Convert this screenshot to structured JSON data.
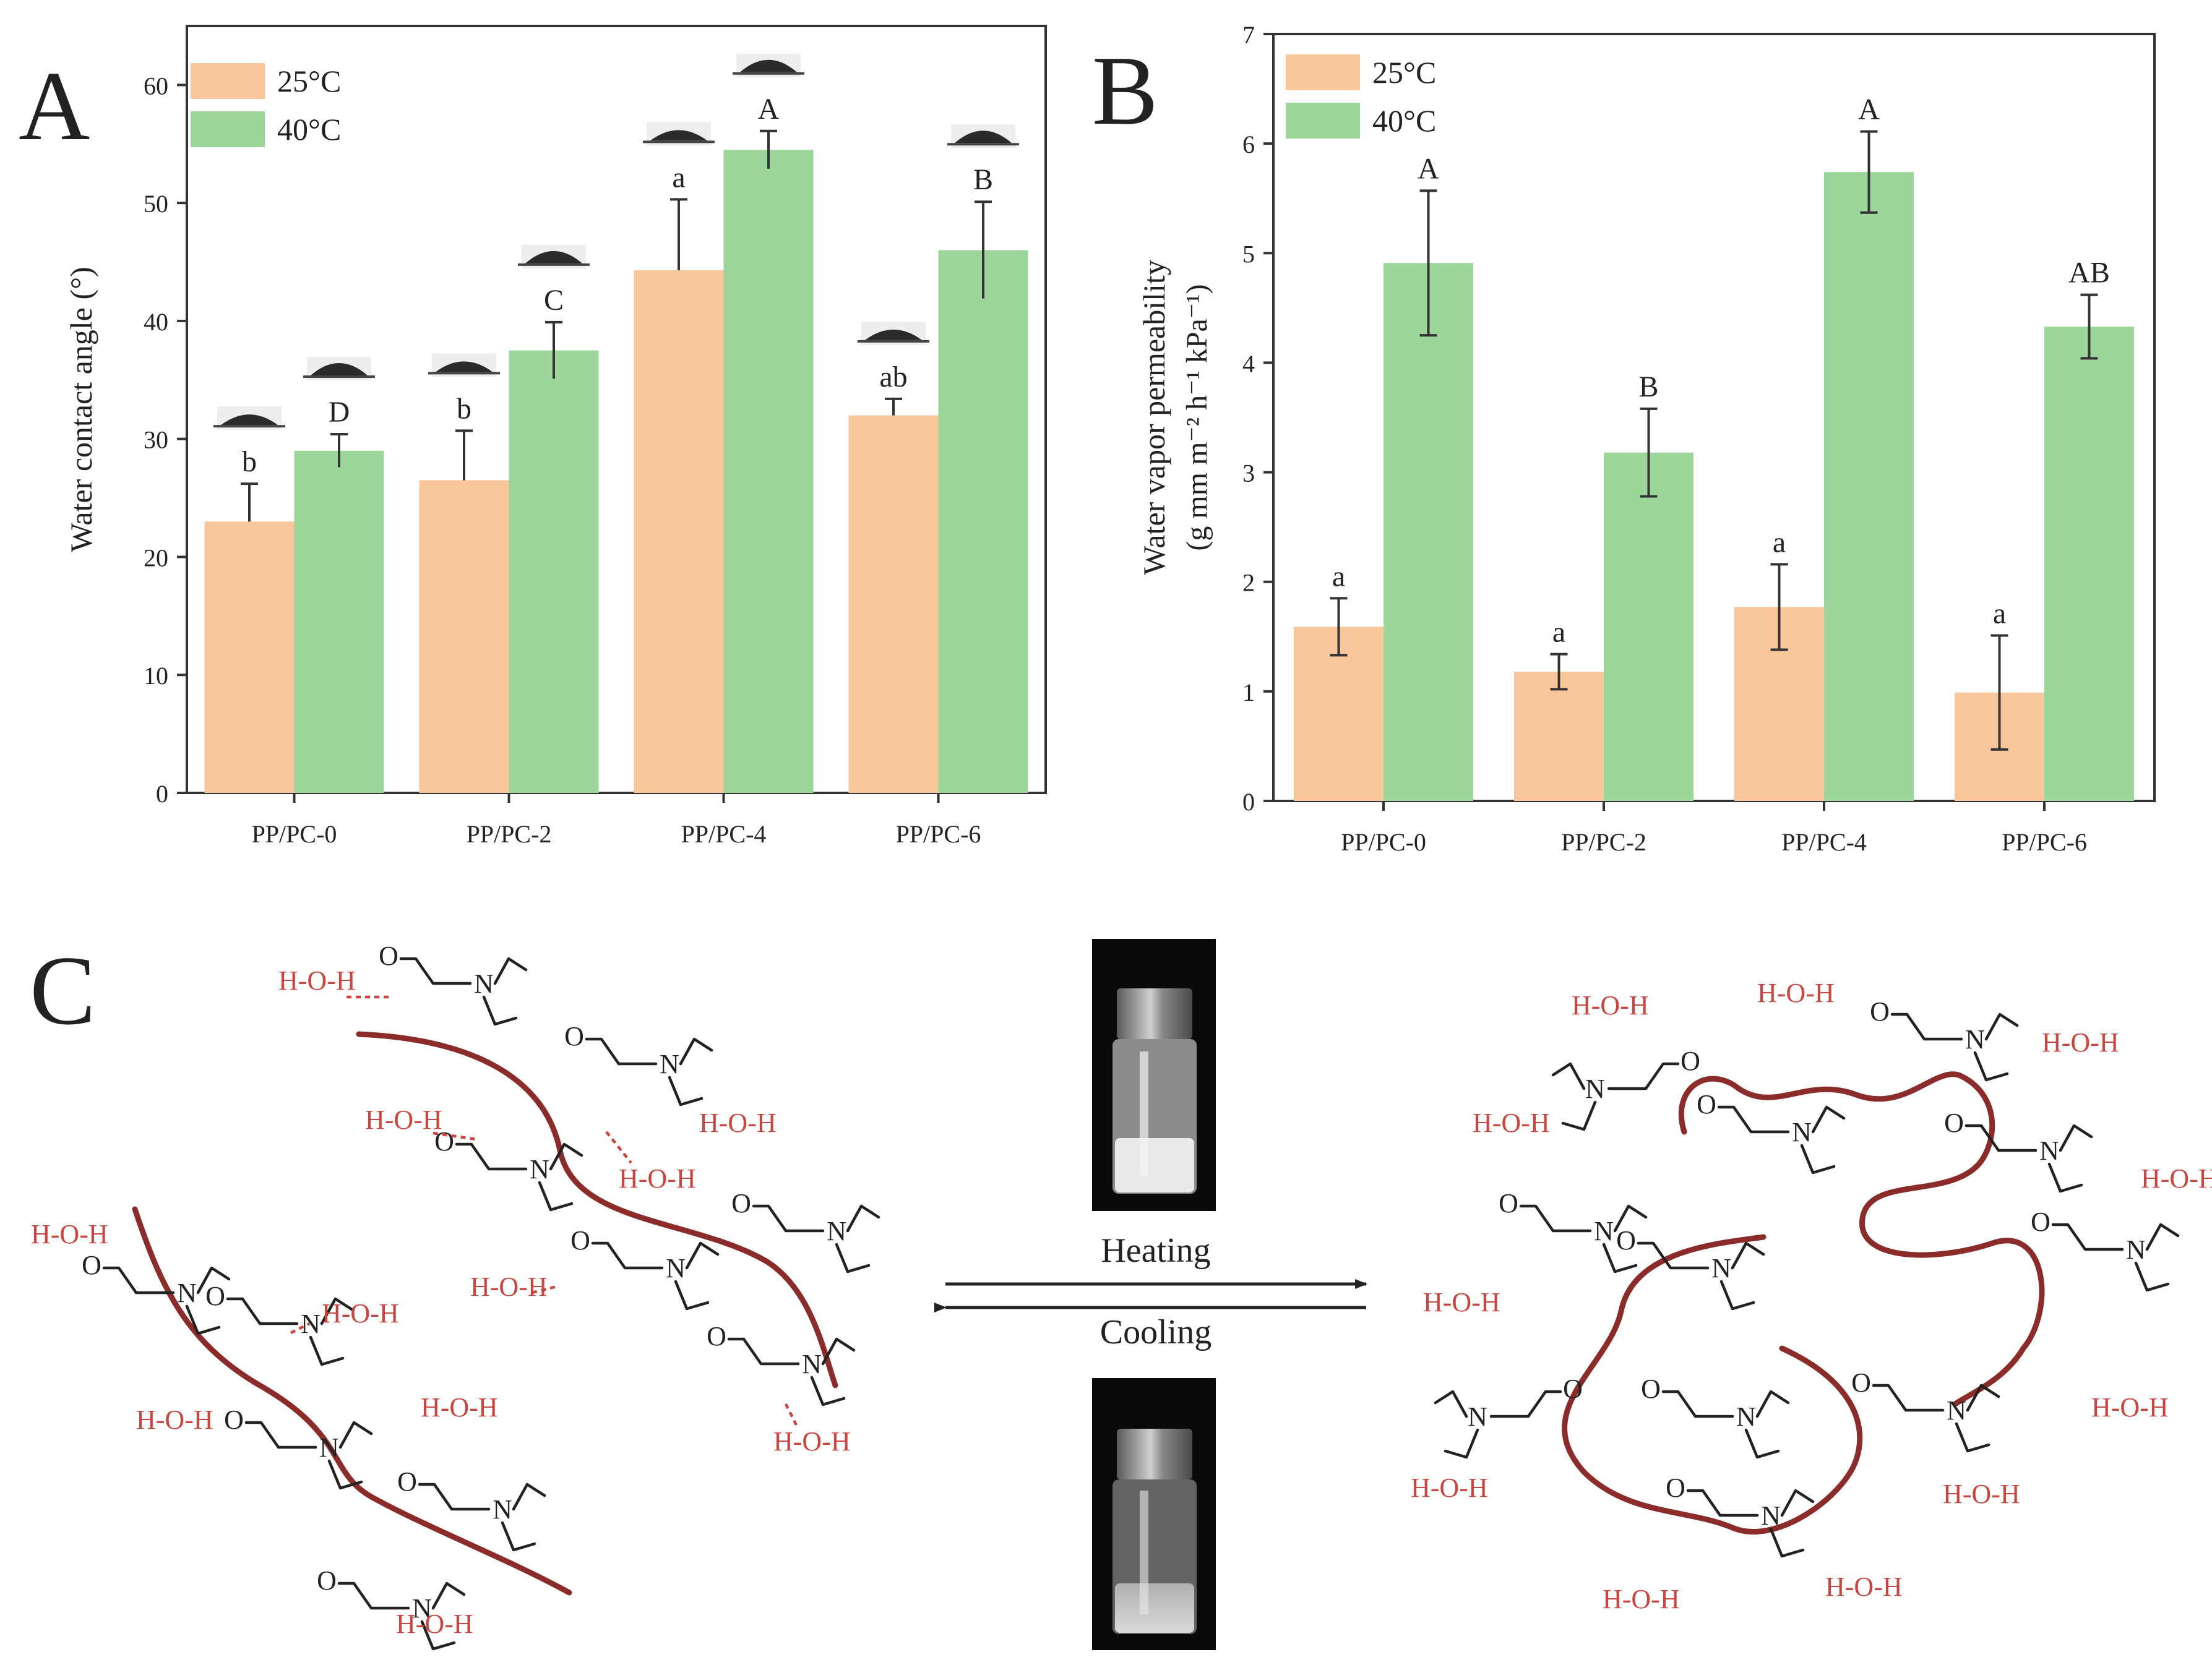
{
  "chart_data": [
    {
      "panel": "A",
      "type": "bar",
      "title": "",
      "xlabel": "",
      "ylabel": "Water contact angle (°)",
      "categories": [
        "PP/PC-0",
        "PP/PC-2",
        "PP/PC-4",
        "PP/PC-6"
      ],
      "ylim": [
        0,
        65
      ],
      "yticks": [
        0,
        10,
        20,
        30,
        40,
        50,
        60
      ],
      "grid": false,
      "legend_position": "top-left",
      "series": [
        {
          "name": "25°C",
          "color": "#f9c59a",
          "values": [
            23.0,
            26.5,
            44.3,
            32.0
          ],
          "errors": [
            3.2,
            4.2,
            6.0,
            1.4
          ],
          "labels": [
            "b",
            "b",
            "a",
            "ab"
          ]
        },
        {
          "name": "40°C",
          "color": "#9dd69b",
          "values": [
            29.0,
            37.5,
            54.5,
            46.0
          ],
          "errors": [
            1.4,
            2.4,
            1.6,
            4.1
          ],
          "labels": [
            "D",
            "C",
            "A",
            "B"
          ]
        }
      ],
      "annotations": "water droplet images above each bar group"
    },
    {
      "panel": "B",
      "type": "bar",
      "title": "",
      "xlabel": "",
      "ylabel_line1": "Water vapor permeability",
      "ylabel_line2": "(g mm m⁻² h⁻¹ kPa⁻¹)",
      "categories": [
        "PP/PC-0",
        "PP/PC-2",
        "PP/PC-4",
        "PP/PC-6"
      ],
      "ylim": [
        0,
        7
      ],
      "yticks": [
        0,
        1,
        2,
        3,
        4,
        5,
        6,
        7
      ],
      "grid": false,
      "legend_position": "top-left",
      "series": [
        {
          "name": "25°C",
          "color": "#f9c59a",
          "values": [
            1.59,
            1.18,
            1.77,
            0.99
          ],
          "errors": [
            0.26,
            0.16,
            0.39,
            0.52
          ],
          "labels": [
            "a",
            "a",
            "a",
            "a"
          ]
        },
        {
          "name": "40°C",
          "color": "#9dd69b",
          "values": [
            4.91,
            3.18,
            5.74,
            4.33
          ],
          "errors": [
            0.66,
            0.4,
            0.37,
            0.29
          ],
          "labels": [
            "A",
            "B",
            "A",
            "AB"
          ]
        }
      ]
    }
  ],
  "panel_labels": {
    "a": "A",
    "b": "B",
    "c": "C"
  },
  "scheme": {
    "heating_label": "Heating",
    "cooling_label": "Cooling",
    "water_molecule": "H-O-H",
    "amide_atoms": {
      "oxygen": "O",
      "nitrogen": "N"
    },
    "colors": {
      "chain": "#8b2c2a",
      "water": "#c8463f",
      "bonds": "#222222"
    }
  }
}
